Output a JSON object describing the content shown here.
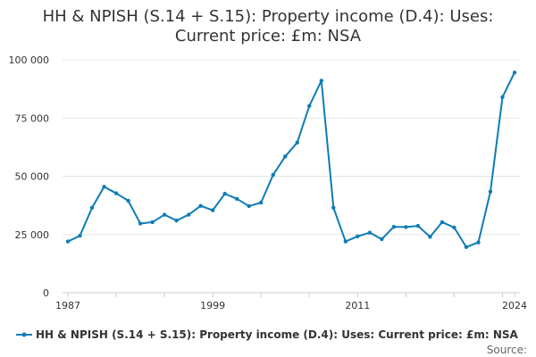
{
  "chart_data": {
    "type": "line",
    "title_lines": [
      "HH & NPISH (S.14 + S.15): Property income (D.4): Uses:",
      "Current price: £m: NSA"
    ],
    "xlabel": "",
    "ylabel": "",
    "x_tick_labels": [
      "1987",
      "1999",
      "2011",
      "2024"
    ],
    "x_ticks": [
      1987,
      1999,
      2011,
      2024
    ],
    "xlim": [
      1987,
      2024
    ],
    "y_tick_labels": [
      "0",
      "25 000",
      "50 000",
      "75 000",
      "100 000"
    ],
    "y_ticks": [
      0,
      25000,
      50000,
      75000,
      100000
    ],
    "ylim": [
      0,
      100000
    ],
    "grid": "horizontal",
    "legend_position": "bottom",
    "color": "#0f7cb6",
    "series": [
      {
        "name": "HH & NPISH (S.14 + S.15): Property income (D.4): Uses: Current price: £m: NSA",
        "x": [
          1987,
          1988,
          1989,
          1990,
          1991,
          1992,
          1993,
          1994,
          1995,
          1996,
          1997,
          1998,
          1999,
          2000,
          2001,
          2002,
          2003,
          2004,
          2005,
          2006,
          2007,
          2008,
          2009,
          2010,
          2011,
          2012,
          2013,
          2014,
          2015,
          2016,
          2017,
          2018,
          2019,
          2020,
          2021,
          2022,
          2023,
          2024
        ],
        "values": [
          22000,
          24500,
          36500,
          45500,
          42700,
          39500,
          29700,
          30300,
          33500,
          31000,
          33500,
          37300,
          35400,
          42500,
          40300,
          37200,
          38700,
          50600,
          58500,
          64500,
          80200,
          91000,
          36500,
          22000,
          24200,
          25800,
          23000,
          28300,
          28200,
          28700,
          24000,
          30300,
          28000,
          19600,
          21600,
          43400,
          84000,
          94500
        ]
      }
    ],
    "source_label": "Source:"
  }
}
